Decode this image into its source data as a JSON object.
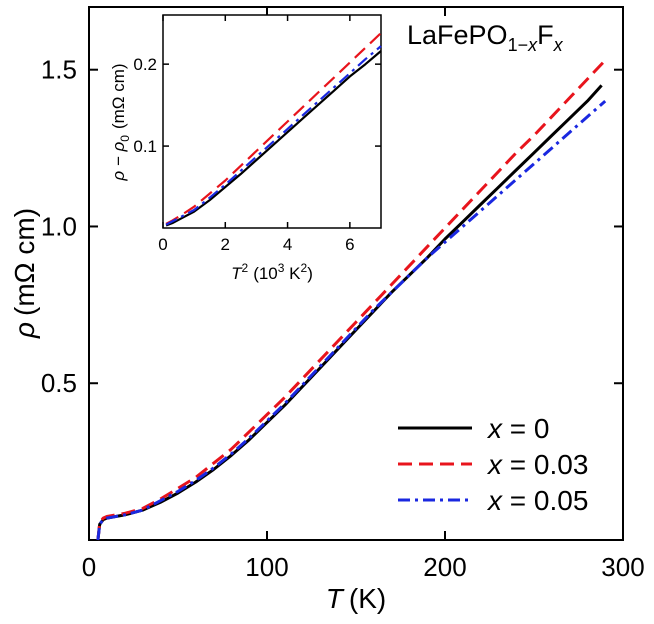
{
  "chart_data": [
    {
      "type": "line",
      "title": "LaFePO1−xFx",
      "title_parts": {
        "base": "LaFePO",
        "sub1": "1−",
        "subx": "x",
        "F": "F",
        "subx2": "x"
      },
      "xlabel": {
        "symbol": "T",
        "unit": "(K)"
      },
      "ylabel": {
        "symbol": "ρ",
        "unit": "(mΩ cm)"
      },
      "xlim": [
        0,
        300
      ],
      "ylim": [
        0,
        1.7
      ],
      "x_ticks": [
        "0",
        "100",
        "200",
        "300"
      ],
      "y_ticks": [
        "0.5",
        "1.0",
        "1.5"
      ],
      "grid": false,
      "legend_position": "bottom-right",
      "series": [
        {
          "name": "x = 0",
          "legend": {
            "var": "x",
            "rest": " = 0"
          },
          "color": "#000000",
          "dash": "solid",
          "x": [
            5,
            6,
            8,
            10,
            20,
            30,
            40,
            50,
            60,
            70,
            80,
            90,
            100,
            110,
            120,
            130,
            140,
            150,
            160,
            170,
            180,
            190,
            200,
            210,
            220,
            230,
            240,
            250,
            260,
            270,
            280,
            288
          ],
          "y": [
            0.0,
            0.05,
            0.065,
            0.07,
            0.08,
            0.095,
            0.12,
            0.15,
            0.185,
            0.225,
            0.27,
            0.32,
            0.375,
            0.43,
            0.49,
            0.55,
            0.61,
            0.67,
            0.73,
            0.79,
            0.845,
            0.9,
            0.96,
            1.015,
            1.07,
            1.125,
            1.18,
            1.235,
            1.29,
            1.345,
            1.4,
            1.45
          ]
        },
        {
          "name": "x = 0.03",
          "legend": {
            "var": "x",
            "rest": " = 0.03"
          },
          "color": "#e8141c",
          "dash": "long-dash",
          "x": [
            5,
            6,
            8,
            10,
            20,
            30,
            40,
            50,
            60,
            70,
            80,
            90,
            100,
            110,
            120,
            130,
            140,
            150,
            160,
            170,
            180,
            190,
            200,
            210,
            220,
            230,
            240,
            250,
            260,
            270,
            280,
            290
          ],
          "y": [
            0.0,
            0.055,
            0.07,
            0.075,
            0.085,
            0.1,
            0.13,
            0.165,
            0.2,
            0.245,
            0.29,
            0.345,
            0.4,
            0.455,
            0.515,
            0.575,
            0.635,
            0.695,
            0.755,
            0.815,
            0.875,
            0.935,
            0.995,
            1.055,
            1.115,
            1.175,
            1.235,
            1.29,
            1.35,
            1.41,
            1.47,
            1.53
          ]
        },
        {
          "name": "x = 0.05",
          "legend": {
            "var": "x",
            "rest": " = 0.05"
          },
          "color": "#1a28e0",
          "dash": "dash-dot",
          "x": [
            5,
            6,
            8,
            10,
            20,
            30,
            40,
            50,
            60,
            70,
            80,
            90,
            100,
            110,
            120,
            130,
            140,
            150,
            160,
            170,
            180,
            190,
            200,
            210,
            220,
            230,
            240,
            250,
            260,
            270,
            280,
            290
          ],
          "y": [
            0.0,
            0.05,
            0.065,
            0.07,
            0.08,
            0.095,
            0.125,
            0.155,
            0.19,
            0.23,
            0.275,
            0.325,
            0.38,
            0.435,
            0.495,
            0.555,
            0.615,
            0.675,
            0.735,
            0.79,
            0.845,
            0.9,
            0.95,
            1.0,
            1.05,
            1.1,
            1.15,
            1.2,
            1.25,
            1.3,
            1.35,
            1.4
          ]
        }
      ]
    },
    {
      "type": "line",
      "title": "",
      "xlabel": {
        "symbol": "T",
        "sup": "2",
        "unit": "(10",
        "unit_sup": "3",
        "unit_rest": " K",
        "unit_sup2": "2",
        "unit_end": ")"
      },
      "ylabel": {
        "symbol": "ρ − ρ",
        "sub": "0",
        "unit": "(mΩ cm)"
      },
      "xlim": [
        0,
        7
      ],
      "ylim": [
        0,
        0.26
      ],
      "x_ticks": [
        "0",
        "2",
        "4",
        "6"
      ],
      "y_ticks": [
        "0.1",
        "0.2"
      ],
      "grid": false,
      "series": [
        {
          "name": "x = 0",
          "color": "#000000",
          "dash": "solid",
          "x": [
            0.1,
            0.3,
            0.6,
            1.0,
            1.5,
            2.0,
            2.5,
            3.0,
            3.5,
            4.0,
            4.5,
            5.0,
            5.5,
            6.0,
            6.5,
            7.0
          ],
          "y": [
            0.003,
            0.006,
            0.012,
            0.02,
            0.034,
            0.05,
            0.066,
            0.083,
            0.1,
            0.117,
            0.134,
            0.151,
            0.168,
            0.185,
            0.2,
            0.216
          ]
        },
        {
          "name": "x = 0.03",
          "color": "#e8141c",
          "dash": "long-dash",
          "x": [
            0.1,
            0.3,
            0.6,
            1.0,
            1.5,
            2.0,
            2.5,
            3.0,
            3.5,
            4.0,
            4.5,
            5.0,
            5.5,
            6.0,
            6.5,
            7.0
          ],
          "y": [
            0.005,
            0.009,
            0.016,
            0.026,
            0.042,
            0.058,
            0.076,
            0.094,
            0.112,
            0.13,
            0.148,
            0.166,
            0.184,
            0.202,
            0.22,
            0.238
          ]
        },
        {
          "name": "x = 0.05",
          "color": "#1a28e0",
          "dash": "dash-dot",
          "x": [
            0.1,
            0.3,
            0.6,
            1.0,
            1.5,
            2.0,
            2.5,
            3.0,
            3.5,
            4.0,
            4.5,
            5.0,
            5.5,
            6.0,
            6.5,
            7.0
          ],
          "y": [
            0.004,
            0.008,
            0.014,
            0.022,
            0.037,
            0.053,
            0.07,
            0.087,
            0.104,
            0.121,
            0.138,
            0.155,
            0.172,
            0.189,
            0.206,
            0.222
          ]
        }
      ]
    }
  ]
}
